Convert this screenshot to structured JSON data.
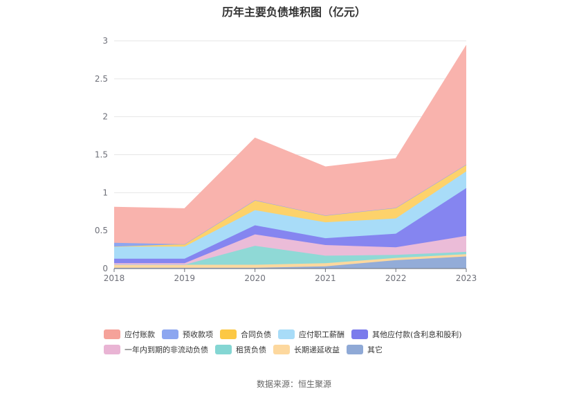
{
  "title": "历年主要负债堆积图（亿元）",
  "source": "数据来源：恒生聚源",
  "chart_data": {
    "type": "area",
    "stacked": true,
    "x": [
      "2018",
      "2019",
      "2020",
      "2021",
      "2022",
      "2023"
    ],
    "ylim": [
      0,
      3
    ],
    "yticks": [
      "0",
      "0.5",
      "1",
      "1.5",
      "2",
      "2.5",
      "3"
    ],
    "grid": true,
    "legend_position": "bottom",
    "series": [
      {
        "name": "其它",
        "color": "#93acd8",
        "values": [
          0.01,
          0.01,
          0.01,
          0.03,
          0.11,
          0.16
        ]
      },
      {
        "name": "长期递延收益",
        "color": "#fdd89e",
        "values": [
          0.04,
          0.04,
          0.04,
          0.04,
          0.03,
          0.03
        ]
      },
      {
        "name": "租赁负债",
        "color": "#8fd9d6",
        "values": [
          0.0,
          0.0,
          0.25,
          0.1,
          0.04,
          0.03
        ]
      },
      {
        "name": "一年内到期的非流动负债",
        "color": "#ebbcd8",
        "values": [
          0.02,
          0.02,
          0.15,
          0.14,
          0.1,
          0.21
        ]
      },
      {
        "name": "其他应付款(含利息和股利)",
        "color": "#8585f0",
        "values": [
          0.06,
          0.06,
          0.12,
          0.09,
          0.18,
          0.63
        ]
      },
      {
        "name": "应付职工薪酬",
        "color": "#a8dcf8",
        "values": [
          0.16,
          0.16,
          0.2,
          0.21,
          0.2,
          0.22
        ]
      },
      {
        "name": "合同负债",
        "color": "#fdd26b",
        "values": [
          0.0,
          0.03,
          0.13,
          0.09,
          0.14,
          0.09
        ]
      },
      {
        "name": "预收款项",
        "color": "#8ca6f0",
        "values": [
          0.05,
          0.0,
          0.0,
          0.0,
          0.0,
          0.0
        ]
      },
      {
        "name": "应付账款",
        "color": "#f9b3ad",
        "values": [
          0.47,
          0.47,
          0.82,
          0.64,
          0.65,
          1.57
        ]
      }
    ],
    "legend_rows": [
      [
        {
          "name": "应付账款",
          "color": "#f5a29a"
        },
        {
          "name": "预收款项",
          "color": "#8ca6f0"
        },
        {
          "name": "合同负债",
          "color": "#fcc844"
        },
        {
          "name": "应付职工薪酬",
          "color": "#a8dcf8"
        },
        {
          "name": "其他应付款(含利息和股利)",
          "color": "#7b7bec"
        }
      ],
      [
        {
          "name": "一年内到期的非流动负债",
          "color": "#e9b4d4"
        },
        {
          "name": "租赁负债",
          "color": "#84d6d3"
        },
        {
          "name": "长期递延收益",
          "color": "#fdd89e"
        },
        {
          "name": "其它",
          "color": "#8fa9d6"
        }
      ]
    ]
  }
}
